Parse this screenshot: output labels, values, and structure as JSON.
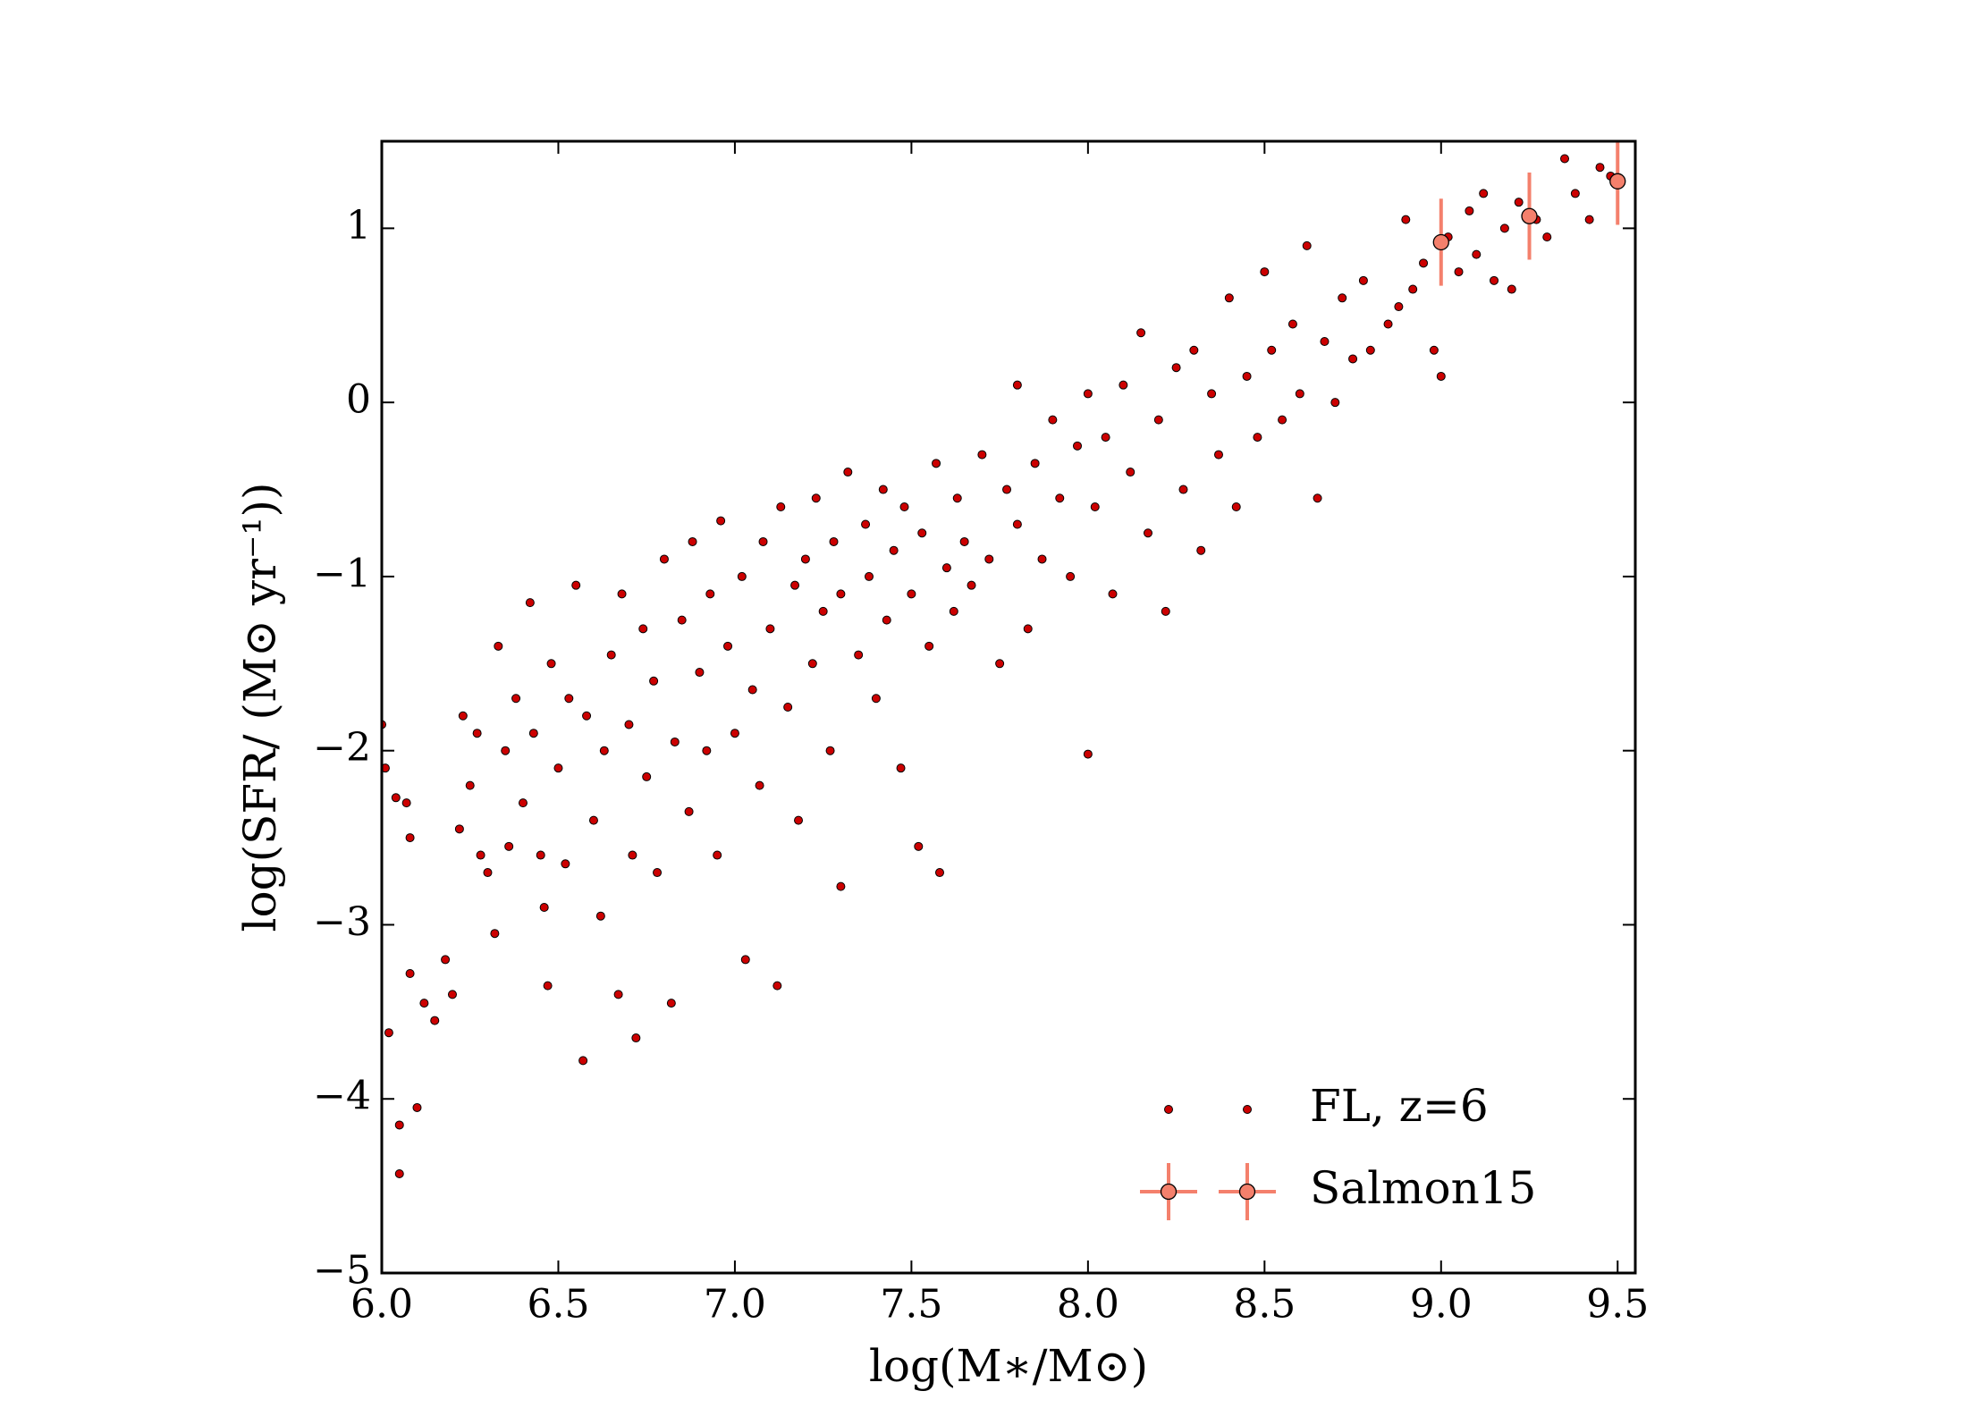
{
  "chart_data": {
    "type": "scatter",
    "xlabel": "log(M∗/M⊙)",
    "ylabel": "log(SFR/ (M⊙ yr⁻¹))",
    "xlim": [
      6.0,
      9.55
    ],
    "ylim": [
      -5,
      1.5
    ],
    "xticks": [
      {
        "value": 6,
        "label": "6.0"
      },
      {
        "value": 6.5,
        "label": "6.5"
      },
      {
        "value": 7,
        "label": "7.0"
      },
      {
        "value": 7.5,
        "label": "7.5"
      },
      {
        "value": 8,
        "label": "8.0"
      },
      {
        "value": 8.5,
        "label": "8.5"
      },
      {
        "value": 9,
        "label": "9.0"
      },
      {
        "value": 9.5,
        "label": "9.5"
      }
    ],
    "yticks": [
      {
        "value": -5,
        "label": "−5"
      },
      {
        "value": -4,
        "label": "−4"
      },
      {
        "value": -3,
        "label": "−3"
      },
      {
        "value": -2,
        "label": "−2"
      },
      {
        "value": -1,
        "label": "−1"
      },
      0,
      1
    ],
    "legend": "lower right",
    "series": [
      {
        "name": "FL, z=6",
        "color": "#cc0000",
        "x": [
          6.0,
          6.01,
          6.02,
          6.04,
          6.05,
          6.05,
          6.07,
          6.08,
          6.08,
          6.1,
          6.12,
          6.15,
          6.18,
          6.2,
          6.22,
          6.23,
          6.25,
          6.27,
          6.28,
          6.3,
          6.32,
          6.33,
          6.35,
          6.36,
          6.38,
          6.4,
          6.42,
          6.43,
          6.45,
          6.46,
          6.47,
          6.48,
          6.5,
          6.52,
          6.53,
          6.55,
          6.57,
          6.58,
          6.6,
          6.62,
          6.63,
          6.65,
          6.67,
          6.68,
          6.7,
          6.71,
          6.72,
          6.74,
          6.75,
          6.77,
          6.78,
          6.8,
          6.82,
          6.83,
          6.85,
          6.87,
          6.88,
          6.9,
          6.92,
          6.93,
          6.95,
          6.96,
          6.98,
          7.0,
          7.02,
          7.03,
          7.05,
          7.07,
          7.08,
          7.1,
          7.12,
          7.13,
          7.15,
          7.17,
          7.18,
          7.2,
          7.22,
          7.23,
          7.25,
          7.27,
          7.28,
          7.3,
          7.3,
          7.32,
          7.35,
          7.37,
          7.38,
          7.4,
          7.42,
          7.43,
          7.45,
          7.47,
          7.48,
          7.5,
          7.52,
          7.53,
          7.55,
          7.57,
          7.58,
          7.6,
          7.62,
          7.63,
          7.65,
          7.67,
          7.7,
          7.72,
          7.75,
          7.77,
          7.8,
          7.8,
          7.83,
          7.85,
          7.87,
          7.9,
          7.92,
          7.95,
          7.97,
          8.0,
          8.0,
          8.02,
          8.05,
          8.07,
          8.1,
          8.12,
          8.15,
          8.17,
          8.2,
          8.22,
          8.25,
          8.27,
          8.3,
          8.32,
          8.35,
          8.37,
          8.4,
          8.42,
          8.45,
          8.48,
          8.5,
          8.52,
          8.55,
          8.58,
          8.6,
          8.62,
          8.65,
          8.67,
          8.7,
          8.72,
          8.75,
          8.78,
          8.8,
          8.85,
          8.88,
          8.9,
          8.92,
          8.95,
          8.98,
          9.0,
          9.02,
          9.05,
          9.08,
          9.1,
          9.12,
          9.15,
          9.18,
          9.2,
          9.22,
          9.27,
          9.3,
          9.35,
          9.38,
          9.42,
          9.45,
          9.48
        ],
        "y": [
          -1.85,
          -2.1,
          -3.62,
          -2.27,
          -4.15,
          -4.43,
          -2.3,
          -3.28,
          -2.5,
          -4.05,
          -3.45,
          -3.55,
          -3.2,
          -3.4,
          -2.45,
          -1.8,
          -2.2,
          -1.9,
          -2.6,
          -2.7,
          -3.05,
          -1.4,
          -2.0,
          -2.55,
          -1.7,
          -2.3,
          -1.15,
          -1.9,
          -2.6,
          -2.9,
          -3.35,
          -1.5,
          -2.1,
          -2.65,
          -1.7,
          -1.05,
          -3.78,
          -1.8,
          -2.4,
          -2.95,
          -2.0,
          -1.45,
          -3.4,
          -1.1,
          -1.85,
          -2.6,
          -3.65,
          -1.3,
          -2.15,
          -1.6,
          -2.7,
          -0.9,
          -3.45,
          -1.95,
          -1.25,
          -2.35,
          -0.8,
          -1.55,
          -2.0,
          -1.1,
          -2.6,
          -0.68,
          -1.4,
          -1.9,
          -1.0,
          -3.2,
          -1.65,
          -2.2,
          -0.8,
          -1.3,
          -3.35,
          -0.6,
          -1.75,
          -1.05,
          -2.4,
          -0.9,
          -1.5,
          -0.55,
          -1.2,
          -2.0,
          -0.8,
          -2.78,
          -1.1,
          -0.4,
          -1.45,
          -0.7,
          -1.0,
          -1.7,
          -0.5,
          -1.25,
          -0.85,
          -2.1,
          -0.6,
          -1.1,
          -2.55,
          -0.75,
          -1.4,
          -0.35,
          -2.7,
          -0.95,
          -1.2,
          -0.55,
          -0.8,
          -1.05,
          -0.3,
          -0.9,
          -1.5,
          -0.5,
          0.1,
          -0.7,
          -1.3,
          -0.35,
          -0.9,
          -0.1,
          -0.55,
          -1.0,
          -0.25,
          -2.02,
          0.05,
          -0.6,
          -0.2,
          -1.1,
          0.1,
          -0.4,
          0.4,
          -0.75,
          -0.1,
          -1.2,
          0.2,
          -0.5,
          0.3,
          -0.85,
          0.05,
          -0.3,
          0.6,
          -0.6,
          0.15,
          -0.2,
          0.75,
          0.3,
          -0.1,
          0.45,
          0.05,
          0.9,
          -0.55,
          0.35,
          0.0,
          0.6,
          0.25,
          0.7,
          0.3,
          0.45,
          0.55,
          1.05,
          0.65,
          0.8,
          0.3,
          0.15,
          0.95,
          0.75,
          1.1,
          0.85,
          1.2,
          0.7,
          1.0,
          0.65,
          1.15,
          1.05,
          0.95,
          1.4,
          1.2,
          1.05,
          1.35,
          1.3
        ]
      },
      {
        "name": "Salmon15",
        "color": "#f4806c",
        "x": [
          9.0,
          9.25,
          9.5
        ],
        "y": [
          0.92,
          1.07,
          1.27
        ],
        "yerr": [
          0.25,
          0.25,
          0.25
        ]
      }
    ]
  }
}
